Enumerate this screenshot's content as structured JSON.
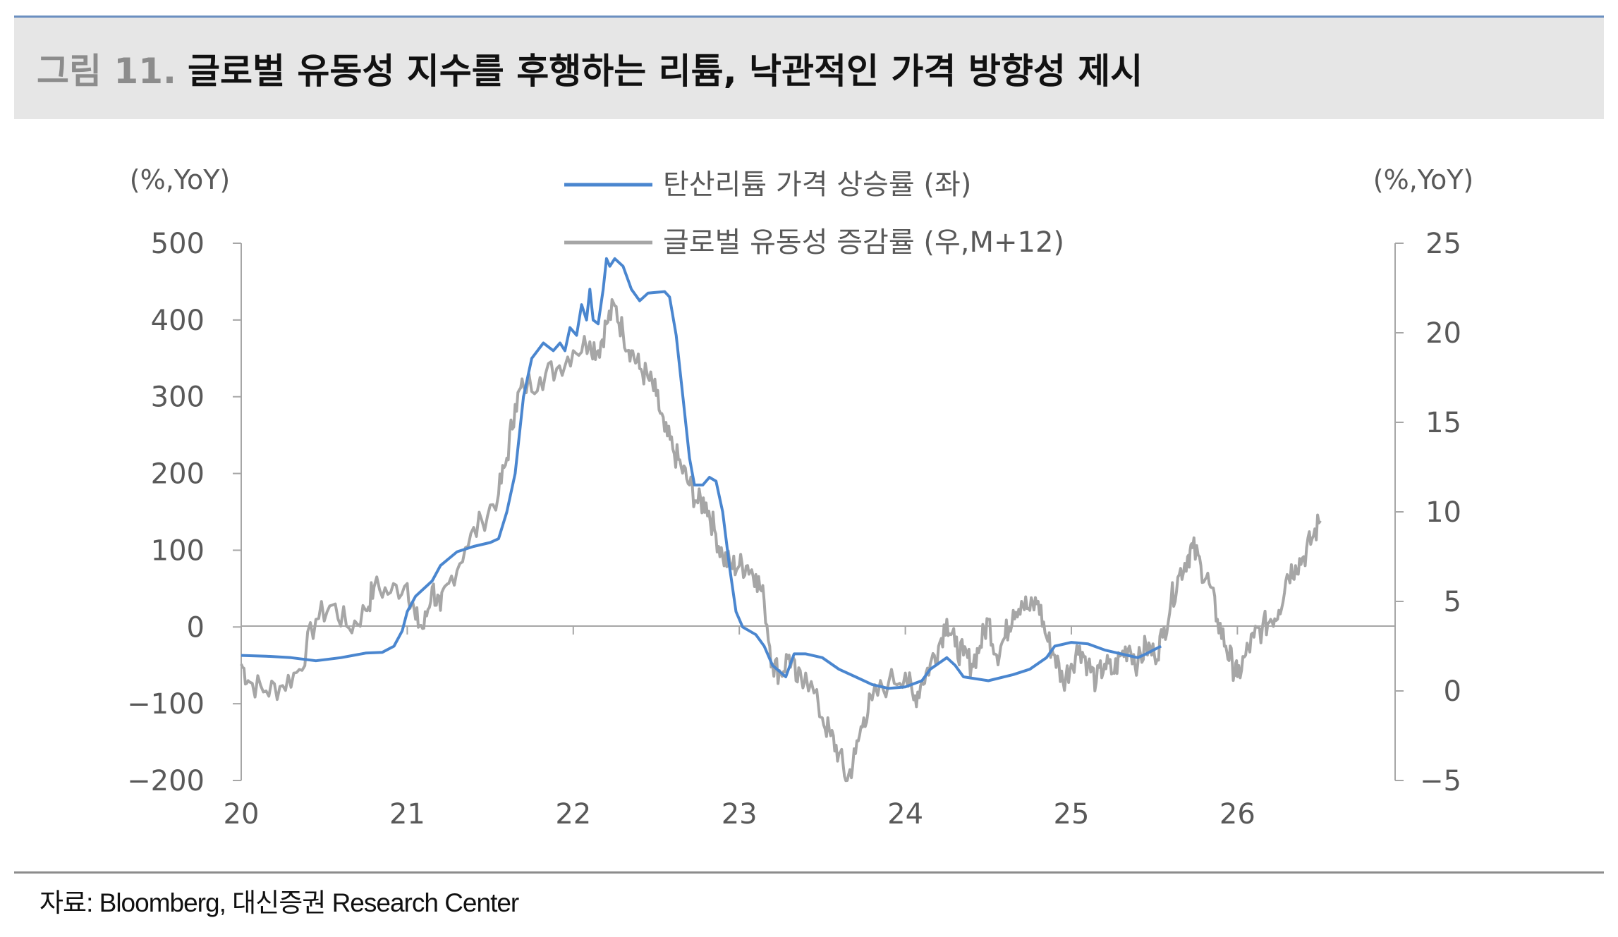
{
  "header": {
    "figure_label": "그림 11.",
    "title": "글로벌 유동성 지수를 후행하는 리튬, 낙관적인 가격 방향성 제시"
  },
  "footer": {
    "source": "자료: Bloomberg, 대신증권 Research Center"
  },
  "colors": {
    "series_lithium": "#4a86cf",
    "series_liquidity": "#a6a6a6",
    "axis": "#a6a6a6",
    "text": "#595959"
  },
  "chart_data": {
    "type": "line",
    "title": "",
    "left_axis_unit": "(%,YoY)",
    "right_axis_unit": "(%,YoY)",
    "x_ticks": [
      "20",
      "21",
      "22",
      "23",
      "24",
      "25",
      "26"
    ],
    "x_range": [
      2020.0,
      2026.95
    ],
    "y_left_ticks": [
      "500",
      "400",
      "300",
      "200",
      "100",
      "0",
      "−100",
      "−200"
    ],
    "y_left_range": [
      -200,
      500
    ],
    "y_right_ticks": [
      "25",
      "20",
      "15",
      "10",
      "5",
      "0",
      "−5"
    ],
    "y_right_range": [
      -5,
      25
    ],
    "legend_position": "top-center",
    "series": [
      {
        "name": "탄산리튬 가격 상승률 (좌)",
        "axis": "left",
        "points": [
          [
            2020.0,
            -37
          ],
          [
            2020.15,
            -38
          ],
          [
            2020.3,
            -40
          ],
          [
            2020.45,
            -44
          ],
          [
            2020.6,
            -40
          ],
          [
            2020.75,
            -34
          ],
          [
            2020.85,
            -33
          ],
          [
            2020.92,
            -25
          ],
          [
            2020.97,
            -5
          ],
          [
            2021.0,
            20
          ],
          [
            2021.05,
            40
          ],
          [
            2021.1,
            50
          ],
          [
            2021.15,
            60
          ],
          [
            2021.2,
            80
          ],
          [
            2021.3,
            98
          ],
          [
            2021.4,
            105
          ],
          [
            2021.5,
            110
          ],
          [
            2021.55,
            115
          ],
          [
            2021.6,
            150
          ],
          [
            2021.65,
            200
          ],
          [
            2021.7,
            300
          ],
          [
            2021.75,
            350
          ],
          [
            2021.82,
            370
          ],
          [
            2021.88,
            360
          ],
          [
            2021.92,
            370
          ],
          [
            2021.95,
            360
          ],
          [
            2021.98,
            390
          ],
          [
            2022.02,
            380
          ],
          [
            2022.05,
            420
          ],
          [
            2022.08,
            400
          ],
          [
            2022.1,
            440
          ],
          [
            2022.12,
            400
          ],
          [
            2022.15,
            395
          ],
          [
            2022.18,
            440
          ],
          [
            2022.2,
            480
          ],
          [
            2022.22,
            470
          ],
          [
            2022.25,
            480
          ],
          [
            2022.3,
            470
          ],
          [
            2022.35,
            440
          ],
          [
            2022.4,
            425
          ],
          [
            2022.45,
            435
          ],
          [
            2022.55,
            437
          ],
          [
            2022.58,
            430
          ],
          [
            2022.62,
            380
          ],
          [
            2022.66,
            300
          ],
          [
            2022.7,
            220
          ],
          [
            2022.73,
            185
          ],
          [
            2022.78,
            185
          ],
          [
            2022.82,
            195
          ],
          [
            2022.86,
            190
          ],
          [
            2022.9,
            150
          ],
          [
            2022.94,
            80
          ],
          [
            2022.98,
            20
          ],
          [
            2023.02,
            0
          ],
          [
            2023.1,
            -10
          ],
          [
            2023.15,
            -25
          ],
          [
            2023.2,
            -50
          ],
          [
            2023.28,
            -65
          ],
          [
            2023.33,
            -35
          ],
          [
            2023.4,
            -35
          ],
          [
            2023.5,
            -40
          ],
          [
            2023.6,
            -55
          ],
          [
            2023.7,
            -65
          ],
          [
            2023.8,
            -75
          ],
          [
            2023.9,
            -80
          ],
          [
            2024.0,
            -78
          ],
          [
            2024.1,
            -70
          ],
          [
            2024.15,
            -55
          ],
          [
            2024.25,
            -40
          ],
          [
            2024.3,
            -50
          ],
          [
            2024.35,
            -65
          ],
          [
            2024.5,
            -70
          ],
          [
            2024.65,
            -62
          ],
          [
            2024.75,
            -55
          ],
          [
            2024.85,
            -40
          ],
          [
            2024.9,
            -25
          ],
          [
            2025.0,
            -20
          ],
          [
            2025.1,
            -22
          ],
          [
            2025.2,
            -30
          ],
          [
            2025.3,
            -35
          ],
          [
            2025.4,
            -40
          ],
          [
            2025.45,
            -35
          ],
          [
            2025.54,
            -25
          ]
        ]
      },
      {
        "name": "글로벌 유동성 증감률 (우,M+12)",
        "axis": "right",
        "points": [
          [
            2020.0,
            1.5
          ],
          [
            2020.05,
            0.5
          ],
          [
            2020.15,
            0.0
          ],
          [
            2020.25,
            0.3
          ],
          [
            2020.35,
            1.2
          ],
          [
            2020.45,
            4.0
          ],
          [
            2020.55,
            4.8
          ],
          [
            2020.65,
            3.5
          ],
          [
            2020.75,
            4.5
          ],
          [
            2020.8,
            5.8
          ],
          [
            2020.9,
            5.5
          ],
          [
            2021.0,
            6.0
          ],
          [
            2021.05,
            4.0
          ],
          [
            2021.1,
            3.5
          ],
          [
            2021.15,
            5.8
          ],
          [
            2021.2,
            4.5
          ],
          [
            2021.25,
            6.0
          ],
          [
            2021.35,
            8.0
          ],
          [
            2021.45,
            9.5
          ],
          [
            2021.55,
            11.0
          ],
          [
            2021.6,
            13.0
          ],
          [
            2021.65,
            16.0
          ],
          [
            2021.7,
            17.0
          ],
          [
            2021.8,
            17.5
          ],
          [
            2021.9,
            18.0
          ],
          [
            2022.0,
            19.0
          ],
          [
            2022.1,
            19.5
          ],
          [
            2022.15,
            19.0
          ],
          [
            2022.2,
            20.5
          ],
          [
            2022.25,
            21.5
          ],
          [
            2022.3,
            20.0
          ],
          [
            2022.35,
            19.0
          ],
          [
            2022.4,
            18.0
          ],
          [
            2022.45,
            17.5
          ],
          [
            2022.5,
            16.5
          ],
          [
            2022.55,
            14.5
          ],
          [
            2022.6,
            13.5
          ],
          [
            2022.65,
            12.5
          ],
          [
            2022.7,
            11.5
          ],
          [
            2022.75,
            10.5
          ],
          [
            2022.8,
            10.5
          ],
          [
            2022.85,
            9.0
          ],
          [
            2022.9,
            7.5
          ],
          [
            2022.95,
            7.0
          ],
          [
            2023.0,
            7.0
          ],
          [
            2023.05,
            7.0
          ],
          [
            2023.1,
            6.5
          ],
          [
            2023.15,
            5.0
          ],
          [
            2023.2,
            1.5
          ],
          [
            2023.25,
            1.0
          ],
          [
            2023.3,
            2.0
          ],
          [
            2023.35,
            0.5
          ],
          [
            2023.4,
            1.0
          ],
          [
            2023.5,
            -1.5
          ],
          [
            2023.55,
            -2.5
          ],
          [
            2023.6,
            -3.5
          ],
          [
            2023.65,
            -5.0
          ],
          [
            2023.7,
            -3.5
          ],
          [
            2023.75,
            -1.5
          ],
          [
            2023.8,
            -0.5
          ],
          [
            2023.9,
            0.5
          ],
          [
            2024.0,
            1.0
          ],
          [
            2024.05,
            -0.5
          ],
          [
            2024.1,
            0.5
          ],
          [
            2024.15,
            1.5
          ],
          [
            2024.2,
            2.5
          ],
          [
            2024.25,
            4.0
          ],
          [
            2024.3,
            2.5
          ],
          [
            2024.35,
            2.0
          ],
          [
            2024.4,
            1.5
          ],
          [
            2024.45,
            2.5
          ],
          [
            2024.5,
            4.0
          ],
          [
            2024.55,
            2.0
          ],
          [
            2024.6,
            3.0
          ],
          [
            2024.65,
            4.5
          ],
          [
            2024.7,
            5.0
          ],
          [
            2024.75,
            4.5
          ],
          [
            2024.8,
            5.0
          ],
          [
            2024.85,
            3.0
          ],
          [
            2024.9,
            2.0
          ],
          [
            2024.95,
            0.5
          ],
          [
            2025.0,
            1.5
          ],
          [
            2025.05,
            2.5
          ],
          [
            2025.1,
            1.5
          ],
          [
            2025.15,
            0.5
          ],
          [
            2025.2,
            1.5
          ],
          [
            2025.25,
            1.0
          ],
          [
            2025.3,
            2.0
          ],
          [
            2025.35,
            2.5
          ],
          [
            2025.4,
            1.5
          ],
          [
            2025.45,
            2.5
          ],
          [
            2025.5,
            2.0
          ],
          [
            2025.55,
            3.0
          ],
          [
            2025.6,
            5.0
          ],
          [
            2025.65,
            6.5
          ],
          [
            2025.7,
            7.5
          ],
          [
            2025.73,
            8.0
          ],
          [
            2025.78,
            7.0
          ],
          [
            2025.83,
            6.0
          ],
          [
            2025.88,
            4.0
          ],
          [
            2025.93,
            2.5
          ],
          [
            2025.97,
            1.5
          ],
          [
            2026.0,
            0.8
          ],
          [
            2026.05,
            2.0
          ],
          [
            2026.1,
            3.0
          ],
          [
            2026.15,
            3.5
          ],
          [
            2026.2,
            4.0
          ],
          [
            2026.25,
            4.5
          ],
          [
            2026.3,
            6.5
          ],
          [
            2026.35,
            7.0
          ],
          [
            2026.4,
            7.5
          ],
          [
            2026.45,
            8.5
          ],
          [
            2026.5,
            9.5
          ]
        ]
      }
    ]
  }
}
